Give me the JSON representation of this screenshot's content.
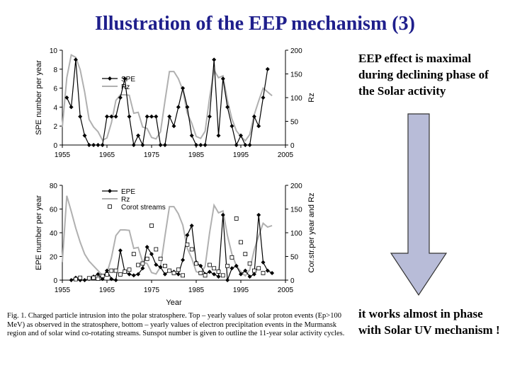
{
  "title": "Illustration of the EEP mechanism (3)",
  "right_text": {
    "top": "EEP effect is maximal during declining phase of the Solar activity",
    "bottom": " it works almost in phase with Solar UV mechanism !"
  },
  "caption": "Fig. 1. Charged particle intrusion into the polar stratosphere. Top – yearly values of solar proton events (Ep>100 MeV) as observed in the stratosphere, bottom – yearly values of electron precipitation events in the Murmansk region and of solar wind co-rotating streams. Sunspot number is given to outline the 11-year solar activity cycles.",
  "colors": {
    "title": "#1f1f8c",
    "arrow_fill": "#b8bcd8",
    "arrow_stroke": "#333333",
    "rz": "#b0b0b0"
  },
  "chart_data": [
    {
      "type": "line",
      "ylabel": "SPE number per year",
      "y2label": "Rz",
      "xlim": [
        1955,
        2005
      ],
      "ylim": [
        0,
        10
      ],
      "y2lim": [
        0,
        200
      ],
      "x_ticks": [
        "1955",
        "1965",
        "1975",
        "1985",
        "1995",
        "2005"
      ],
      "y_ticks": [
        "0",
        "2",
        "4",
        "6",
        "8",
        "10"
      ],
      "y2_ticks": [
        "0",
        "50",
        "100",
        "150",
        "200"
      ],
      "legend": "upper-left",
      "series": [
        {
          "name": "SPE",
          "axis": "left",
          "x": [
            1956,
            1957,
            1958,
            1959,
            1960,
            1961,
            1962,
            1963,
            1964,
            1965,
            1966,
            1967,
            1968,
            1969,
            1970,
            1971,
            1972,
            1973,
            1974,
            1975,
            1976,
            1977,
            1978,
            1979,
            1980,
            1981,
            1982,
            1983,
            1984,
            1985,
            1986,
            1987,
            1988,
            1989,
            1990,
            1991,
            1992,
            1993,
            1994,
            1995,
            1996,
            1997,
            1998,
            1999,
            2000,
            2001
          ],
          "y": [
            5,
            4,
            9,
            3,
            1,
            0,
            0,
            0,
            0,
            3,
            3,
            3,
            5,
            7,
            3,
            0,
            1,
            0,
            3,
            3,
            3,
            0,
            0,
            3,
            2,
            4,
            6,
            4,
            1,
            0,
            0,
            0,
            3,
            9,
            1,
            7,
            4,
            2,
            0,
            1,
            0,
            0,
            3,
            2,
            5,
            8
          ]
        },
        {
          "name": "Rz",
          "axis": "right",
          "x": [
            1955,
            1956,
            1957,
            1958,
            1959,
            1960,
            1961,
            1962,
            1963,
            1964,
            1965,
            1966,
            1967,
            1968,
            1969,
            1970,
            1971,
            1972,
            1973,
            1974,
            1975,
            1976,
            1977,
            1978,
            1979,
            1980,
            1981,
            1982,
            1983,
            1984,
            1985,
            1986,
            1987,
            1988,
            1989,
            1990,
            1991,
            1992,
            1993,
            1994,
            1995,
            1996,
            1997,
            1998,
            1999,
            2000,
            2001,
            2002
          ],
          "y": [
            38,
            142,
            190,
            185,
            159,
            112,
            54,
            38,
            28,
            10,
            15,
            47,
            94,
            106,
            106,
            105,
            67,
            69,
            38,
            35,
            16,
            13,
            28,
            93,
            155,
            155,
            140,
            116,
            67,
            46,
            18,
            14,
            29,
            100,
            158,
            142,
            146,
            94,
            55,
            30,
            18,
            9,
            22,
            64,
            93,
            120,
            112,
            104
          ]
        }
      ]
    },
    {
      "type": "line",
      "ylabel": "EPE number per year",
      "y2label": "Cor.str.per year and Rz",
      "xlabel": "Year",
      "xlim": [
        1955,
        2005
      ],
      "ylim": [
        0,
        80
      ],
      "y2lim": [
        0,
        200
      ],
      "x_ticks": [
        "1955",
        "1965",
        "1975",
        "1985",
        "1995",
        "2005"
      ],
      "y_ticks": [
        "0",
        "20",
        "40",
        "60",
        "80"
      ],
      "y2_ticks": [
        "0",
        "50",
        "100",
        "150",
        "200"
      ],
      "legend": "upper-left",
      "series": [
        {
          "name": "EPE",
          "axis": "left",
          "x": [
            1957,
            1958,
            1959,
            1960,
            1961,
            1962,
            1963,
            1964,
            1965,
            1966,
            1967,
            1968,
            1969,
            1970,
            1971,
            1972,
            1973,
            1974,
            1975,
            1976,
            1977,
            1978,
            1979,
            1980,
            1981,
            1982,
            1983,
            1984,
            1985,
            1986,
            1987,
            1988,
            1989,
            1990,
            1991,
            1992,
            1993,
            1994,
            1995,
            1996,
            1997,
            1998,
            1999,
            2000,
            2001,
            2002
          ],
          "y": [
            0,
            2,
            0,
            0,
            1,
            3,
            5,
            1,
            8,
            1,
            0,
            25,
            7,
            5,
            4,
            5,
            10,
            28,
            22,
            13,
            11,
            5,
            8,
            7,
            5,
            17,
            38,
            46,
            15,
            12,
            5,
            7,
            5,
            3,
            55,
            0,
            10,
            12,
            5,
            8,
            3,
            5,
            55,
            15,
            8,
            6
          ]
        },
        {
          "name": "Rz",
          "axis": "right",
          "x": [
            1955,
            1956,
            1957,
            1958,
            1959,
            1960,
            1961,
            1962,
            1963,
            1964,
            1965,
            1966,
            1967,
            1968,
            1969,
            1970,
            1971,
            1972,
            1973,
            1974,
            1975,
            1976,
            1977,
            1978,
            1979,
            1980,
            1981,
            1982,
            1983,
            1984,
            1985,
            1986,
            1987,
            1988,
            1989,
            1990,
            1991,
            1992,
            1993,
            1994,
            1995,
            1996,
            1997,
            1998,
            1999,
            2000,
            2001,
            2002
          ],
          "y": [
            38,
            178,
            145,
            110,
            80,
            55,
            40,
            30,
            20,
            10,
            15,
            47,
            94,
            106,
            106,
            105,
            67,
            69,
            38,
            35,
            16,
            13,
            28,
            93,
            155,
            155,
            140,
            116,
            67,
            46,
            18,
            14,
            29,
            100,
            158,
            142,
            146,
            94,
            55,
            30,
            18,
            9,
            22,
            64,
            93,
            120,
            112,
            115
          ]
        },
        {
          "name": "Corot streams",
          "axis": "right",
          "x": [
            1958,
            1959,
            1961,
            1962,
            1963,
            1964,
            1965,
            1966,
            1967,
            1968,
            1969,
            1970,
            1971,
            1972,
            1973,
            1974,
            1975,
            1976,
            1977,
            1978,
            1979,
            1980,
            1981,
            1982,
            1983,
            1984,
            1985,
            1986,
            1987,
            1988,
            1989,
            1990,
            1991,
            1992,
            1993,
            1994,
            1995,
            1996,
            1997,
            1998,
            1999,
            2000
          ],
          "y": [
            2,
            5,
            4,
            5,
            3,
            9,
            12,
            20,
            20,
            12,
            18,
            22,
            55,
            32,
            35,
            45,
            115,
            65,
            45,
            30,
            20,
            15,
            22,
            10,
            75,
            65,
            35,
            15,
            10,
            32,
            25,
            18,
            10,
            30,
            48,
            130,
            80,
            55,
            35,
            20,
            25,
            15
          ]
        }
      ]
    }
  ]
}
